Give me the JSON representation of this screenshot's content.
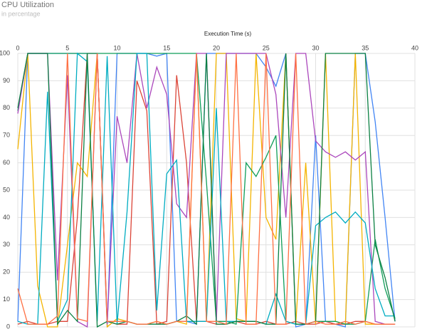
{
  "chart_data": {
    "type": "line",
    "title": "CPU Utilization",
    "subtitle": "in percentage",
    "x_label": "Execution Time (s)",
    "x": [
      0,
      1,
      2,
      3,
      4,
      5,
      6,
      7,
      8,
      9,
      10,
      11,
      12,
      13,
      14,
      15,
      16,
      17,
      18,
      19,
      20,
      21,
      22,
      23,
      24,
      25,
      26,
      27,
      28,
      29,
      30,
      31,
      32,
      33,
      34,
      35,
      36,
      37,
      38
    ],
    "xlim": [
      0,
      40
    ],
    "xticks": [
      0,
      5,
      10,
      15,
      20,
      25,
      30,
      35,
      40
    ],
    "ylim": [
      0,
      100
    ],
    "yticks": [
      0,
      10,
      20,
      30,
      40,
      50,
      60,
      70,
      80,
      90,
      100
    ],
    "grid": true,
    "series": [
      {
        "color": "#4285f4",
        "values": [
          2,
          100,
          100,
          100,
          100,
          100,
          100,
          100,
          100,
          0,
          100,
          100,
          100,
          100,
          99,
          100,
          2,
          2,
          1,
          100,
          100,
          100,
          100,
          100,
          100,
          95,
          88,
          100,
          0,
          1,
          70,
          2,
          1,
          0,
          100,
          100,
          75,
          40,
          2
        ]
      },
      {
        "color": "#db4437",
        "values": [
          1,
          2,
          1,
          1,
          2,
          2,
          40,
          100,
          100,
          2,
          1,
          1,
          90,
          79,
          1,
          2,
          92,
          60,
          2,
          2,
          1,
          1,
          2,
          1,
          1,
          2,
          1,
          1,
          2,
          1,
          1,
          2,
          1,
          1,
          2,
          2,
          1,
          1,
          1
        ]
      },
      {
        "color": "#f4b400",
        "values": [
          65,
          100,
          15,
          0,
          0,
          30,
          60,
          55,
          100,
          0,
          3,
          2,
          1,
          1,
          2,
          1,
          2,
          1,
          100,
          2,
          100,
          100,
          3,
          2,
          100,
          40,
          32,
          100,
          1,
          60,
          1,
          100,
          2,
          1,
          100,
          1,
          1,
          1,
          1
        ]
      },
      {
        "color": "#0f9d58",
        "values": [
          79,
          100,
          100,
          100,
          100,
          100,
          100,
          100,
          100,
          100,
          100,
          100,
          100,
          100,
          100,
          100,
          100,
          100,
          100,
          53,
          2,
          2,
          1,
          60,
          55,
          62,
          70,
          2,
          1,
          1,
          2,
          2,
          2,
          1,
          1,
          2,
          32,
          14,
          3
        ]
      },
      {
        "color": "#ab47bc",
        "values": [
          78,
          100,
          100,
          100,
          17,
          92,
          2,
          0,
          100,
          1,
          77,
          60,
          100,
          80,
          95,
          85,
          45,
          40,
          100,
          100,
          2,
          100,
          100,
          100,
          100,
          100,
          85,
          40,
          100,
          100,
          68,
          64,
          62,
          64,
          61,
          64,
          2,
          1,
          1
        ]
      },
      {
        "color": "#00acc1",
        "values": [
          2,
          1,
          1,
          86,
          2,
          10,
          100,
          97,
          2,
          99,
          1,
          42,
          100,
          100,
          6,
          56,
          61,
          2,
          2,
          2,
          80,
          2,
          2,
          2,
          2,
          1,
          12,
          2,
          1,
          1,
          37,
          40,
          42,
          38,
          42,
          38,
          14,
          4,
          4
        ]
      },
      {
        "color": "#0b8043",
        "values": [
          80,
          100,
          100,
          100,
          1,
          6,
          2,
          100,
          0,
          2,
          1,
          2,
          1,
          1,
          1,
          1,
          2,
          4,
          1,
          100,
          1,
          1,
          2,
          2,
          2,
          1,
          1,
          100,
          1,
          1,
          2,
          100,
          100,
          100,
          100,
          100,
          30,
          18,
          2
        ]
      },
      {
        "color": "#ff7043",
        "values": [
          14,
          1,
          1,
          1,
          4,
          100,
          3,
          2,
          100,
          2,
          2,
          2,
          1,
          1,
          2,
          1,
          2,
          2,
          100,
          2,
          2,
          1,
          100,
          1,
          1,
          100,
          1,
          1,
          100,
          1,
          2,
          1,
          1,
          2,
          1,
          2,
          1,
          1,
          1
        ]
      }
    ]
  }
}
